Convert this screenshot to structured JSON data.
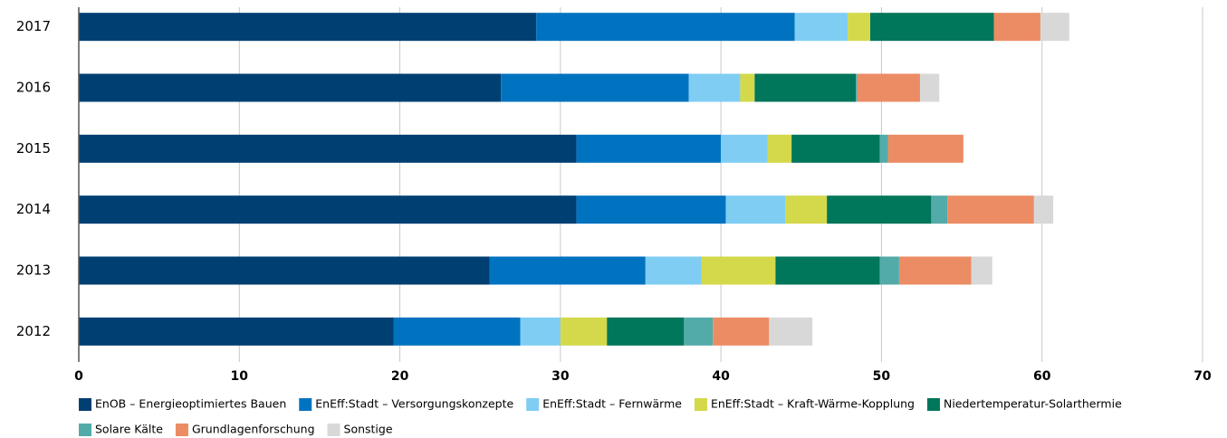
{
  "chart_data": {
    "type": "bar",
    "orientation": "horizontal",
    "stacked": true,
    "categories": [
      "2017",
      "2016",
      "2015",
      "2014",
      "2013",
      "2012"
    ],
    "series": [
      {
        "name": "EnOB – Energieoptimiertes Bauen",
        "color": "#003f72",
        "values": [
          28.5,
          26.3,
          31.0,
          31.0,
          25.6,
          19.6
        ]
      },
      {
        "name": "EnEff:Stadt – Versorgungskonzepte",
        "color": "#0073c0",
        "values": [
          16.1,
          11.7,
          9.0,
          9.3,
          9.7,
          7.9
        ]
      },
      {
        "name": "EnEff:Stadt – Fernwärme",
        "color": "#7fcdf3",
        "values": [
          3.3,
          3.2,
          2.9,
          3.7,
          3.5,
          2.5
        ]
      },
      {
        "name": "EnEff:Stadt – Kraft-Wärme-Kopplung",
        "color": "#d3d94a",
        "values": [
          1.4,
          0.9,
          1.5,
          2.6,
          4.6,
          2.9
        ]
      },
      {
        "name": "Niedertemperatur-Solarthermie",
        "color": "#00765a",
        "values": [
          7.7,
          6.3,
          5.5,
          6.5,
          6.5,
          4.8
        ]
      },
      {
        "name": "Solare Kälte",
        "color": "#53aba9",
        "values": [
          0,
          0.1,
          0.5,
          1.0,
          1.2,
          1.8
        ]
      },
      {
        "name": "Grundlagenforschung",
        "color": "#ec8c64",
        "values": [
          2.9,
          3.9,
          4.7,
          5.4,
          4.5,
          3.5
        ]
      },
      {
        "name": "Sonstige",
        "color": "#d8d8d8",
        "values": [
          1.8,
          1.2,
          0,
          1.2,
          1.3,
          2.7
        ]
      }
    ],
    "xlim": [
      0,
      70
    ],
    "xticks": [
      0,
      10,
      20,
      30,
      40,
      50,
      60,
      70
    ],
    "grid": true,
    "legend": "bottom"
  }
}
